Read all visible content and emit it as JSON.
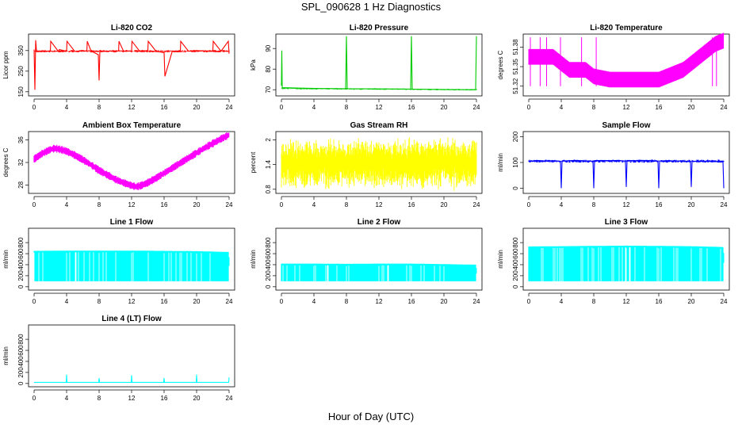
{
  "figure": {
    "title": "SPL_090628  1 Hz Diagnostics",
    "xlabel": "Hour of Day (UTC)"
  },
  "chart_data": [
    {
      "id": "co2",
      "type": "line",
      "title": "Li-820 CO2",
      "ylabel": "Licor ppm",
      "color": "#ff0000",
      "x_ticks": [
        0,
        4,
        8,
        12,
        16,
        20,
        24
      ],
      "xlim": [
        0,
        24
      ],
      "y_ticks": [
        150,
        250,
        350
      ],
      "ylim": [
        130,
        430
      ],
      "series": [
        {
          "x": [
            0,
            0.1,
            0.2,
            0.3,
            1,
            2,
            2.05,
            3,
            3.1,
            4,
            4.05,
            5,
            6,
            6.5,
            6.55,
            7,
            7.9,
            8,
            8.1,
            9,
            10,
            10.4,
            10.45,
            11,
            12,
            12.05,
            13,
            14,
            14.05,
            15,
            16,
            16.1,
            17,
            18,
            18.05,
            19,
            20,
            21,
            22,
            22.05,
            23,
            23.9,
            24
          ],
          "y": [
            355,
            160,
            400,
            345,
            348,
            347,
            395,
            345,
            355,
            347,
            395,
            346,
            348,
            348,
            395,
            348,
            330,
            205,
            348,
            347,
            348,
            348,
            395,
            347,
            348,
            395,
            346,
            348,
            395,
            347,
            340,
            225,
            347,
            348,
            395,
            347,
            350,
            348,
            348,
            395,
            347,
            395,
            335
          ]
        }
      ]
    },
    {
      "id": "pressure",
      "type": "line",
      "title": "Li-820 Pressure",
      "ylabel": "kPa",
      "color": "#00cc00",
      "x_ticks": [
        0,
        4,
        8,
        12,
        16,
        20,
        24
      ],
      "xlim": [
        0,
        24
      ],
      "y_ticks": [
        70,
        80,
        90
      ],
      "ylim": [
        67,
        97
      ],
      "series": [
        {
          "x": [
            0,
            0.05,
            0.1,
            2,
            4,
            7.9,
            8,
            8.1,
            12,
            15.9,
            16,
            16.1,
            20,
            23.9,
            24
          ],
          "y": [
            72,
            89,
            71,
            70.8,
            70.6,
            70.5,
            96,
            70.5,
            70.4,
            70.3,
            96,
            70.3,
            70.1,
            70,
            96
          ]
        }
      ]
    },
    {
      "id": "licor-temp",
      "type": "line",
      "title": "Li-820 Temperature",
      "ylabel": "degrees C",
      "color": "#ff00ff",
      "x_ticks": [
        0,
        4,
        8,
        12,
        16,
        20,
        24
      ],
      "xlim": [
        0,
        24
      ],
      "y_ticks": [
        51.32,
        51.35,
        51.38
      ],
      "ylim": [
        51.305,
        51.4
      ],
      "series": [
        {
          "x": [
            0,
            1,
            2,
            3,
            4,
            5,
            6,
            7,
            8,
            10,
            12,
            14,
            16,
            17,
            18,
            19,
            20,
            21,
            22,
            23,
            24
          ],
          "y": [
            51.365,
            51.365,
            51.365,
            51.365,
            51.355,
            51.345,
            51.345,
            51.345,
            51.335,
            51.33,
            51.33,
            51.33,
            51.33,
            51.335,
            51.34,
            51.345,
            51.355,
            51.365,
            51.375,
            51.385,
            51.39
          ]
        }
      ]
    },
    {
      "id": "ambient-temp",
      "type": "line",
      "title": "Ambient Box Temperature",
      "ylabel": "degrees C",
      "color": "#ff00ff",
      "x_ticks": [
        0,
        4,
        8,
        12,
        16,
        20,
        24
      ],
      "xlim": [
        0,
        24
      ],
      "y_ticks": [
        28,
        32,
        36
      ],
      "ylim": [
        26.5,
        37.5
      ],
      "series": [
        {
          "x": [
            0,
            1,
            2,
            2.5,
            3,
            4,
            5,
            6,
            7,
            8,
            9,
            10,
            11,
            12,
            12.5,
            13,
            14,
            15,
            16,
            17,
            18,
            19,
            20,
            21,
            22,
            23,
            24
          ],
          "y": [
            32.6,
            33.6,
            34.3,
            34.5,
            34.4,
            34.0,
            33.3,
            32.5,
            31.6,
            30.6,
            29.8,
            29.0,
            28.4,
            27.9,
            27.7,
            27.8,
            28.4,
            29.2,
            30.1,
            31.0,
            31.9,
            32.8,
            33.7,
            34.6,
            35.4,
            36.2,
            36.9
          ]
        }
      ]
    },
    {
      "id": "rh",
      "type": "line",
      "title": "Gas Stream RH",
      "ylabel": "percent",
      "color": "#ffff00",
      "x_ticks": [
        0,
        4,
        8,
        12,
        16,
        20,
        24
      ],
      "xlim": [
        0,
        24
      ],
      "y_ticks": [
        0.8,
        1.4,
        2.0
      ],
      "ylim": [
        0.7,
        2.2
      ],
      "series": [
        {
          "x": [
            0,
            2,
            4,
            6,
            8,
            10,
            12,
            14,
            16,
            18,
            20,
            22,
            24
          ],
          "y": [
            1.0,
            2.0,
            1.1,
            2.05,
            1.0,
            1.95,
            1.1,
            2.0,
            0.95,
            1.95,
            0.9,
            1.9,
            1.4
          ]
        }
      ]
    },
    {
      "id": "sample-flow",
      "type": "line",
      "title": "Sample Flow",
      "ylabel": "ml/min",
      "color": "#0000ff",
      "x_ticks": [
        0,
        4,
        8,
        12,
        16,
        20,
        24
      ],
      "xlim": [
        0,
        24
      ],
      "y_ticks": [
        0,
        100,
        200
      ],
      "ylim": [
        -20,
        220
      ],
      "series": [
        {
          "x": [
            0,
            1,
            2,
            3,
            3.9,
            4,
            4.1,
            5,
            6,
            7,
            7.9,
            8,
            8.1,
            9,
            10,
            11,
            11.9,
            12,
            12.1,
            13,
            14,
            15,
            15.9,
            16,
            16.1,
            17,
            18,
            19,
            19.9,
            20,
            20.1,
            21,
            22,
            23,
            23.9,
            24
          ],
          "y": [
            105,
            108,
            106,
            107,
            105,
            0,
            106,
            107,
            108,
            106,
            105,
            0,
            107,
            108,
            107,
            108,
            106,
            5,
            108,
            107,
            108,
            107,
            105,
            0,
            106,
            107,
            106,
            105,
            104,
            5,
            104,
            105,
            104,
            103,
            102,
            0
          ]
        }
      ]
    },
    {
      "id": "line1",
      "type": "area",
      "title": "Line 1 Flow",
      "ylabel": "ml/min",
      "color": "#00ffff",
      "x_ticks": [
        0,
        4,
        8,
        12,
        16,
        20,
        24
      ],
      "xlim": [
        0,
        24
      ],
      "y_ticks": [
        0,
        200,
        400,
        600,
        800
      ],
      "ylim": [
        -60,
        1060
      ],
      "series": [
        {
          "x": [
            0,
            4,
            8,
            12,
            16,
            20,
            24
          ],
          "y": [
            650,
            655,
            655,
            655,
            650,
            645,
            630
          ],
          "low": 100
        }
      ]
    },
    {
      "id": "line2",
      "type": "area",
      "title": "Line 2 Flow",
      "ylabel": "ml/min",
      "color": "#00ffff",
      "x_ticks": [
        0,
        4,
        8,
        12,
        16,
        20,
        24
      ],
      "xlim": [
        0,
        24
      ],
      "y_ticks": [
        0,
        200,
        400,
        600,
        800
      ],
      "ylim": [
        -60,
        1060
      ],
      "series": [
        {
          "x": [
            0,
            4,
            8,
            12,
            16,
            20,
            24
          ],
          "y": [
            420,
            420,
            415,
            420,
            420,
            410,
            400
          ],
          "low": 100
        }
      ]
    },
    {
      "id": "line3",
      "type": "area",
      "title": "Line 3 Flow",
      "ylabel": "ml/min",
      "color": "#00ffff",
      "x_ticks": [
        0,
        4,
        8,
        12,
        16,
        20,
        24
      ],
      "xlim": [
        0,
        24
      ],
      "y_ticks": [
        0,
        200,
        400,
        600,
        800
      ],
      "ylim": [
        -60,
        1060
      ],
      "series": [
        {
          "x": [
            0,
            4,
            8,
            12,
            16,
            20,
            24
          ],
          "y": [
            730,
            735,
            740,
            745,
            740,
            735,
            720
          ],
          "low": 100
        }
      ]
    },
    {
      "id": "line4",
      "type": "line",
      "title": "Line 4 (LT) Flow",
      "ylabel": "ml/min",
      "color": "#00ffff",
      "x_ticks": [
        0,
        4,
        8,
        12,
        16,
        20,
        24
      ],
      "xlim": [
        0,
        24
      ],
      "y_ticks": [
        0,
        200,
        400,
        600,
        800
      ],
      "ylim": [
        -60,
        1060
      ],
      "series": [
        {
          "x": [
            0,
            3.95,
            4,
            4.05,
            7.95,
            8,
            8.05,
            11.95,
            12,
            12.05,
            15.95,
            16,
            16.05,
            19.95,
            20,
            20.05,
            23.95,
            24
          ],
          "y": [
            20,
            20,
            160,
            20,
            20,
            100,
            20,
            20,
            150,
            20,
            20,
            100,
            20,
            20,
            160,
            20,
            20,
            110
          ]
        }
      ]
    }
  ]
}
